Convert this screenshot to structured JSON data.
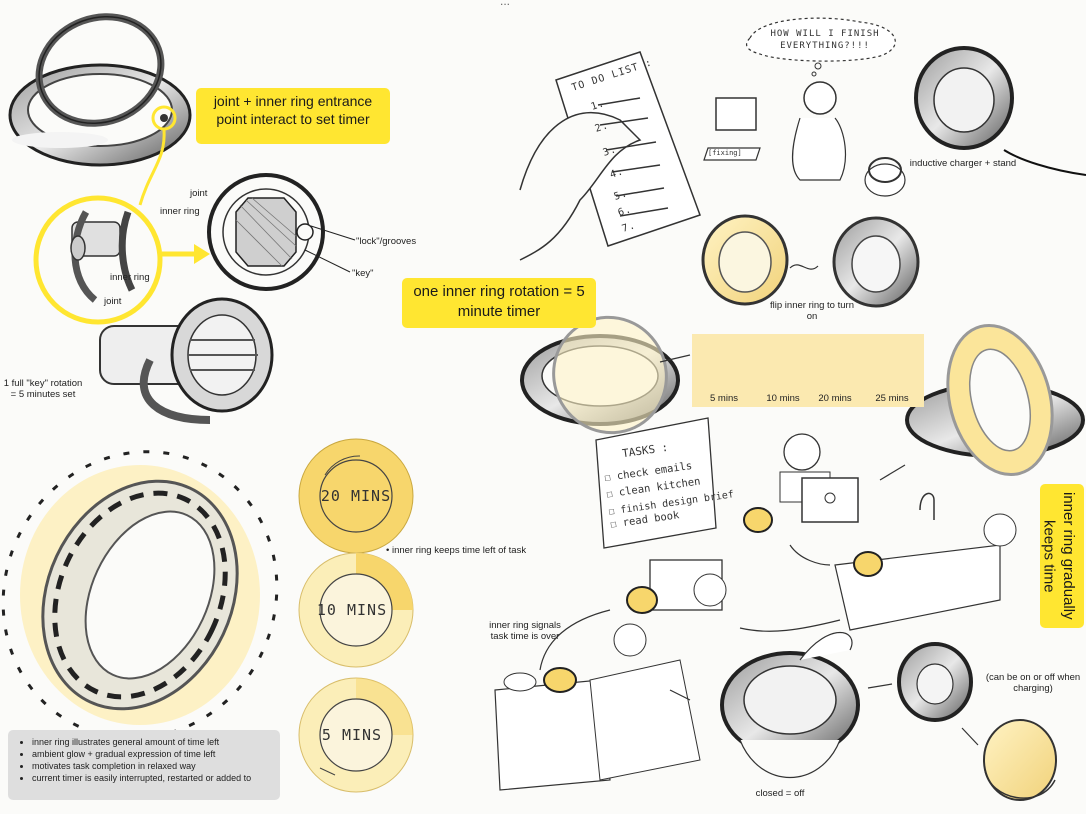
{
  "header_text": "...",
  "callouts": {
    "joint_entrance": "joint + inner ring entrance point interact to set timer",
    "one_rotation": "one inner ring rotation = 5 minute timer",
    "gradual": "inner ring gradually keeps time"
  },
  "labels": {
    "joint_top": "joint",
    "inner_ring_top": "inner ring",
    "inner_ring_mid": "inner ring",
    "joint_bottom": "joint",
    "lock_grooves": "\"lock\"/grooves",
    "key": "\"key\"",
    "full_key_rotation": "1 full \"key\" rotation = 5 minutes set",
    "inductive_charger": "inductive charger + stand",
    "flip_inner_ring": "flip inner ring to turn on",
    "keeps_time_left": "inner ring keeps time left of task",
    "signals_over": "inner ring signals task time is over",
    "closed_off": "closed = off",
    "on_off_charging": "(can be on or off when charging)"
  },
  "thought_bubble": "HOW WILL I FINISH EVERYTHING?!!!",
  "todo_title": "TO DO LIST :",
  "todo_numbers": [
    "1.",
    "2.",
    "3.",
    "4.",
    "5.",
    "6.",
    "7."
  ],
  "laptop_screen_text": "[fixing]",
  "timer_stages": [
    "5 mins",
    "10 mins",
    "20 mins",
    "25 mins"
  ],
  "timer_discs": [
    "20 MINS",
    "10 MINS",
    "5 MINS"
  ],
  "tasks": {
    "title": "TASKS :",
    "items": [
      "check emails",
      "clean kitchen",
      "finish design brief",
      "read book"
    ]
  },
  "notes": [
    "inner ring illustrates general amount of time left",
    "ambient glow + gradual expression of time left",
    "motivates task completion in relaxed way",
    "current timer is easily interrupted, restarted or added to"
  ],
  "colors": {
    "accent_yellow": "#ffe631",
    "pale_yellow": "#fbe9b0",
    "note_gray": "#dedede"
  }
}
